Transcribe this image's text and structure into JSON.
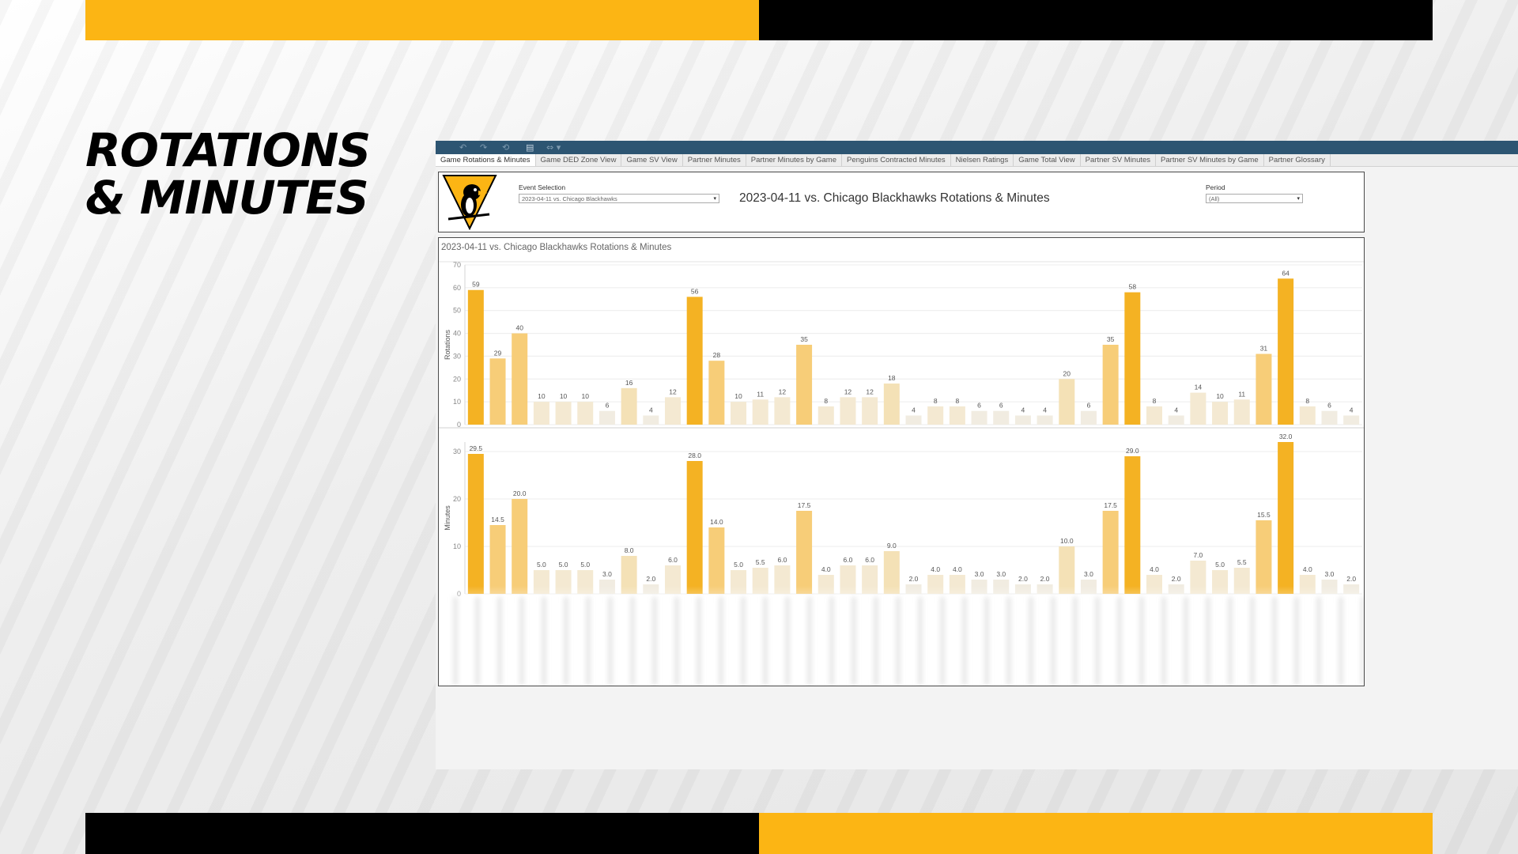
{
  "slide": {
    "title_line1": "ROTATIONS",
    "title_line2": "& MINUTES",
    "colors": {
      "gold": "#fcb514",
      "black": "#000000"
    }
  },
  "toolbar": {
    "icons": [
      "undo-icon",
      "redo-icon",
      "revert-icon",
      "pause-icon",
      "share-icon"
    ]
  },
  "tabs": [
    {
      "label": "Game Rotations & Minutes",
      "active": true
    },
    {
      "label": "Game DED Zone View"
    },
    {
      "label": "Game SV View"
    },
    {
      "label": "Partner Minutes"
    },
    {
      "label": "Partner Minutes by Game"
    },
    {
      "label": "Penguins Contracted Minutes"
    },
    {
      "label": "Nielsen Ratings"
    },
    {
      "label": "Game Total View"
    },
    {
      "label": "Partner SV Minutes"
    },
    {
      "label": "Partner SV Minutes by Game"
    },
    {
      "label": "Partner Glossary"
    }
  ],
  "header": {
    "logo_icon": "penguins-logo",
    "event_label": "Event Selection",
    "event_value": "2023-04-11 vs. Chicago Blackhawks",
    "title": "2023-04-11 vs. Chicago Blackhawks Rotations  & Minutes",
    "period_label": "Period",
    "period_value": "(All)"
  },
  "chart_panel": {
    "title": "2023-04-11 vs. Chicago Blackhawks Rotations & Minutes"
  },
  "chart_data": [
    {
      "type": "bar",
      "ylabel": "Rotations",
      "ylim": [
        0,
        70
      ],
      "yticks": [
        0,
        10,
        20,
        30,
        40,
        50,
        60,
        70
      ],
      "grid": true,
      "value_labels": [
        "59",
        "29",
        "40",
        "10",
        "10",
        "10",
        "6",
        "16",
        "4",
        "12",
        "56",
        "28",
        "10",
        "11",
        "12",
        "35",
        "8",
        "12",
        "12",
        "18",
        "4",
        "8",
        "8",
        "6",
        "6",
        "4",
        "4",
        "20",
        "6",
        "35",
        "58",
        "8",
        "4",
        "14",
        "10",
        "11",
        "31",
        "64",
        "8",
        "6",
        "4"
      ],
      "values": [
        59,
        29,
        40,
        10,
        10,
        10,
        6,
        16,
        4,
        12,
        56,
        28,
        10,
        11,
        12,
        35,
        8,
        12,
        12,
        18,
        4,
        8,
        8,
        6,
        6,
        4,
        4,
        20,
        6,
        35,
        58,
        8,
        4,
        14,
        10,
        11,
        31,
        64,
        8,
        6,
        4
      ]
    },
    {
      "type": "bar",
      "ylabel": "Minutes",
      "ylim": [
        0,
        32
      ],
      "yticks": [
        0,
        10,
        20,
        30
      ],
      "grid": true,
      "value_labels": [
        "29.5",
        "14.5",
        "20.0",
        "5.0",
        "5.0",
        "5.0",
        "3.0",
        "8.0",
        "2.0",
        "6.0",
        "28.0",
        "14.0",
        "5.0",
        "5.5",
        "6.0",
        "17.5",
        "4.0",
        "6.0",
        "6.0",
        "9.0",
        "2.0",
        "4.0",
        "4.0",
        "3.0",
        "3.0",
        "2.0",
        "2.0",
        "10.0",
        "3.0",
        "17.5",
        "29.0",
        "4.0",
        "2.0",
        "7.0",
        "5.0",
        "5.5",
        "15.5",
        "32.0",
        "4.0",
        "3.0",
        "2.0"
      ],
      "values": [
        29.5,
        14.5,
        20,
        5,
        5,
        5,
        3,
        8,
        2,
        6,
        28,
        14,
        5,
        5.5,
        6,
        17.5,
        4,
        6,
        6,
        9,
        2,
        4,
        4,
        3,
        3,
        2,
        2,
        10,
        3,
        17.5,
        29,
        4,
        2,
        7,
        5,
        5.5,
        15.5,
        32,
        4,
        3,
        2
      ]
    }
  ]
}
